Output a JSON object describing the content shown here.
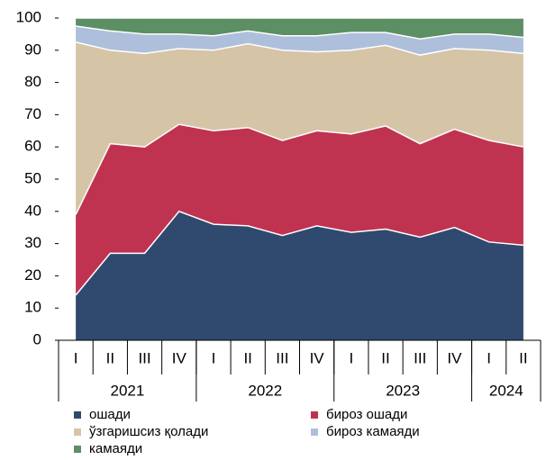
{
  "chart_data": {
    "type": "stacked_area",
    "categories": [
      "I",
      "II",
      "III",
      "IV",
      "I",
      "II",
      "III",
      "IV",
      "I",
      "II",
      "III",
      "IV",
      "I",
      "II"
    ],
    "groups": [
      {
        "label": "2021",
        "span": 4
      },
      {
        "label": "2022",
        "span": 4
      },
      {
        "label": "2023",
        "span": 4
      },
      {
        "label": "2024",
        "span": 2
      }
    ],
    "series": [
      {
        "name": "ошади",
        "color": "#2f4a6e",
        "values": [
          14,
          27,
          27,
          40,
          36,
          35.5,
          32.5,
          35.5,
          33.5,
          34.5,
          32,
          35,
          30.5,
          29.5
        ]
      },
      {
        "name": "бироз ошади",
        "color": "#c03350",
        "values": [
          25,
          34,
          33,
          27,
          29,
          30.5,
          29.5,
          29.5,
          30.5,
          32,
          29,
          30.5,
          31.5,
          30.5
        ]
      },
      {
        "name": "ўзгаришсиз қолади",
        "color": "#d6c4a7",
        "values": [
          53.5,
          29,
          29,
          23.5,
          25,
          26,
          28,
          24.5,
          26,
          25,
          27.5,
          25,
          28,
          29
        ]
      },
      {
        "name": "бироз камаяди",
        "color": "#aebfdc",
        "values": [
          5,
          6,
          6,
          4.5,
          4.5,
          4,
          4.5,
          5,
          5.5,
          4,
          5,
          4.5,
          5,
          5
        ]
      },
      {
        "name": "камаяди",
        "color": "#5c8f64",
        "values": [
          2.5,
          4,
          5,
          5,
          5.5,
          4,
          5.5,
          5.5,
          4.5,
          4.5,
          6.5,
          5,
          5,
          6
        ]
      }
    ],
    "ylim": [
      0,
      100
    ],
    "yticks": [
      0,
      10,
      20,
      30,
      40,
      50,
      60,
      70,
      80,
      90,
      100
    ],
    "grid": false
  }
}
